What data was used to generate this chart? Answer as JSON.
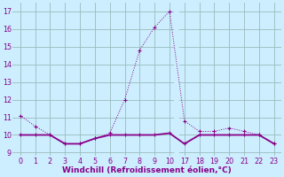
{
  "line1_x": [
    0,
    1,
    2,
    3,
    4,
    5,
    6,
    7,
    8,
    9,
    10,
    17,
    18,
    19,
    20,
    21,
    22,
    23
  ],
  "line1_y": [
    11.1,
    10.5,
    10.0,
    9.5,
    9.5,
    9.8,
    10.1,
    12.0,
    14.8,
    16.1,
    17.0,
    10.8,
    10.2,
    10.2,
    10.4,
    10.2,
    10.0,
    9.5
  ],
  "line2_x": [
    0,
    1,
    2,
    3,
    4,
    5,
    6,
    7,
    8,
    9,
    10,
    17,
    18,
    19,
    20,
    21,
    22,
    23
  ],
  "line2_y": [
    10.0,
    10.0,
    10.0,
    9.5,
    9.5,
    9.8,
    10.0,
    10.0,
    10.0,
    10.0,
    10.1,
    9.5,
    10.0,
    10.0,
    10.0,
    10.0,
    10.0,
    9.5
  ],
  "line_color": "#880088",
  "bg_color": "#cceeff",
  "grid_color": "#99bbbb",
  "xlabel": "Windchill (Refroidissement éolien,°C)",
  "ylim": [
    8.8,
    17.5
  ],
  "xtick_labels": [
    "0",
    "1",
    "2",
    "3",
    "4",
    "5",
    "6",
    "7",
    "8",
    "9",
    "10",
    "17",
    "18",
    "19",
    "20",
    "21",
    "22",
    "23"
  ],
  "yticks": [
    9,
    10,
    11,
    12,
    13,
    14,
    15,
    16,
    17
  ],
  "label_fontsize": 6.5,
  "tick_fontsize": 5.8
}
